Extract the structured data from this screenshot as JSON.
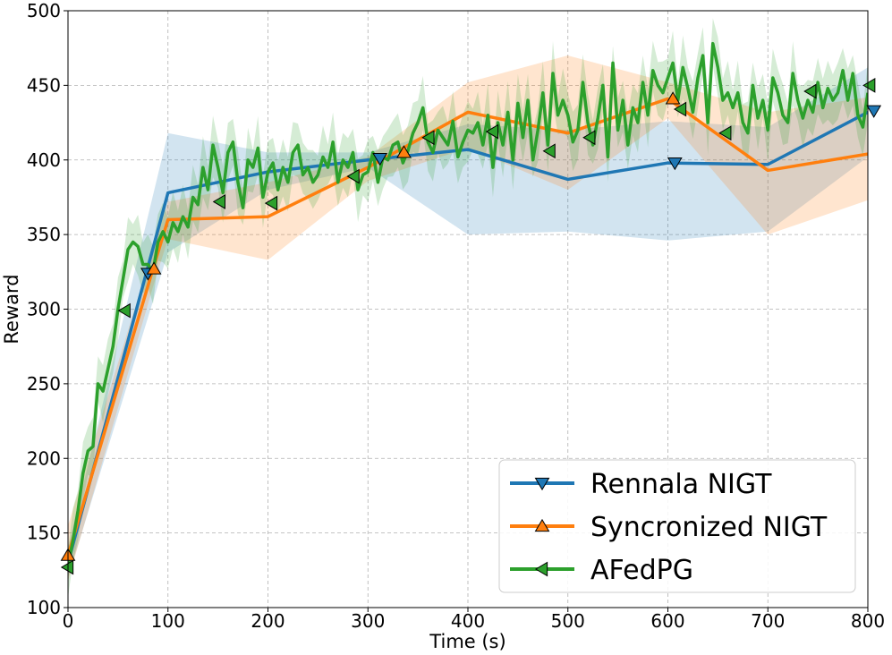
{
  "chart_data": {
    "type": "line",
    "xlabel": "Time (s)",
    "ylabel": "Reward",
    "xlim": [
      0,
      800
    ],
    "ylim": [
      100,
      500
    ],
    "xticks": [
      0,
      100,
      200,
      300,
      400,
      500,
      600,
      700,
      800
    ],
    "yticks": [
      100,
      150,
      200,
      250,
      300,
      350,
      400,
      450,
      500
    ],
    "grid": true,
    "legend_position": "lower-right",
    "series": [
      {
        "name": "Rennala NIGT",
        "color": "#1f77b4",
        "marker": "triangle-down",
        "x": [
          0,
          100,
          200,
          300,
          400,
          500,
          600,
          700,
          800
        ],
        "y": [
          130,
          378,
          392,
          400,
          407,
          387,
          398,
          397,
          432
        ],
        "band_upper": [
          140,
          418,
          405,
          405,
          424,
          420,
          426,
          422,
          462
        ],
        "band_lower": [
          120,
          338,
          380,
          395,
          350,
          352,
          346,
          352,
          402
        ],
        "marker_points": [
          {
            "x": 80,
            "y": 324
          },
          {
            "x": 312,
            "y": 401
          },
          {
            "x": 607,
            "y": 398
          },
          {
            "x": 806,
            "y": 433
          }
        ]
      },
      {
        "name": "Syncronized NIGT",
        "color": "#ff7f0e",
        "marker": "triangle-up",
        "x": [
          0,
          85,
          100,
          200,
          300,
          400,
          500,
          600,
          700,
          800
        ],
        "y": [
          135,
          327,
          360,
          362,
          395,
          432,
          418,
          441,
          393,
          404
        ],
        "band_upper": [
          155,
          340,
          372,
          385,
          402,
          452,
          470,
          452,
          432,
          442
        ],
        "band_lower": [
          118,
          315,
          347,
          333,
          386,
          408,
          380,
          428,
          350,
          373
        ],
        "marker_points": [
          {
            "x": 0,
            "y": 135
          },
          {
            "x": 86,
            "y": 327
          },
          {
            "x": 336,
            "y": 405
          },
          {
            "x": 605,
            "y": 441
          }
        ]
      },
      {
        "name": "AFedPG",
        "color": "#2ca02c",
        "marker": "triangle-left",
        "x": [
          0,
          5,
          10,
          15,
          20,
          25,
          30,
          35,
          40,
          45,
          50,
          55,
          60,
          65,
          70,
          75,
          80,
          85,
          90,
          95,
          100,
          105,
          110,
          115,
          120,
          125,
          130,
          135,
          140,
          145,
          150,
          155,
          160,
          165,
          170,
          175,
          180,
          185,
          190,
          195,
          200,
          205,
          210,
          215,
          220,
          225,
          230,
          235,
          240,
          245,
          250,
          255,
          260,
          265,
          270,
          275,
          280,
          285,
          290,
          295,
          300,
          305,
          310,
          315,
          320,
          325,
          330,
          335,
          340,
          345,
          350,
          355,
          360,
          365,
          370,
          375,
          380,
          385,
          390,
          395,
          400,
          405,
          410,
          415,
          420,
          425,
          430,
          435,
          440,
          445,
          450,
          455,
          460,
          465,
          470,
          475,
          480,
          485,
          490,
          495,
          500,
          505,
          510,
          515,
          520,
          525,
          530,
          535,
          540,
          545,
          550,
          555,
          560,
          565,
          570,
          575,
          580,
          585,
          590,
          595,
          600,
          605,
          610,
          615,
          620,
          625,
          630,
          635,
          640,
          645,
          650,
          655,
          660,
          665,
          670,
          675,
          680,
          685,
          690,
          695,
          700,
          705,
          710,
          715,
          720,
          725,
          730,
          735,
          740,
          745,
          750,
          755,
          760,
          765,
          770,
          775,
          780,
          785,
          790,
          795,
          800
        ],
        "y": [
          128,
          145,
          165,
          190,
          205,
          208,
          250,
          245,
          260,
          275,
          300,
          320,
          340,
          345,
          342,
          330,
          330,
          325,
          345,
          352,
          345,
          358,
          352,
          362,
          355,
          375,
          370,
          395,
          380,
          410,
          395,
          378,
          405,
          412,
          385,
          368,
          400,
          395,
          408,
          375,
          392,
          398,
          380,
          395,
          385,
          405,
          410,
          390,
          395,
          385,
          390,
          402,
          395,
          412,
          385,
          400,
          395,
          405,
          380,
          390,
          392,
          405,
          385,
          402,
          400,
          410,
          412,
          398,
          406,
          418,
          425,
          435,
          412,
          405,
          420,
          415,
          410,
          426,
          402,
          412,
          420,
          418,
          425,
          410,
          430,
          395,
          425,
          410,
          432,
          400,
          438,
          415,
          440,
          400,
          420,
          445,
          410,
          458,
          430,
          440,
          430,
          412,
          420,
          452,
          425,
          410,
          428,
          450,
          402,
          465,
          420,
          440,
          410,
          435,
          425,
          452,
          430,
          460,
          450,
          445,
          455,
          465,
          440,
          462,
          448,
          432,
          455,
          470,
          425,
          478,
          462,
          440,
          445,
          435,
          445,
          425,
          418,
          450,
          428,
          440,
          420,
          455,
          445,
          430,
          425,
          458,
          440,
          428,
          440,
          432,
          452,
          435,
          448,
          440,
          445,
          460,
          440,
          458,
          430,
          422,
          445
        ],
        "band_spread": 18,
        "marker_points": [
          {
            "x": 0,
            "y": 127
          },
          {
            "x": 57,
            "y": 299
          },
          {
            "x": 152,
            "y": 372
          },
          {
            "x": 204,
            "y": 371
          },
          {
            "x": 286,
            "y": 389
          },
          {
            "x": 361,
            "y": 415
          },
          {
            "x": 425,
            "y": 419
          },
          {
            "x": 482,
            "y": 406
          },
          {
            "x": 522,
            "y": 415
          },
          {
            "x": 613,
            "y": 434
          },
          {
            "x": 658,
            "y": 418
          },
          {
            "x": 743,
            "y": 446
          },
          {
            "x": 802,
            "y": 450
          }
        ]
      }
    ]
  }
}
